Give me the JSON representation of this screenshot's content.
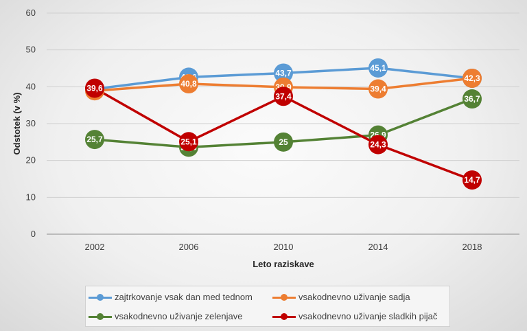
{
  "chart_data": {
    "type": "line",
    "xlabel": "Leto raziskave",
    "ylabel": "Odstotek (v %)",
    "categories": [
      "2002",
      "2006",
      "2010",
      "2014",
      "2018"
    ],
    "ylim": [
      0,
      60
    ],
    "yticks": [
      "0",
      "10",
      "20",
      "30",
      "40",
      "50",
      "60"
    ],
    "grid": true,
    "legend_position": "bottom",
    "series": [
      {
        "name": "zajtrkovanje vsak dan med tednom",
        "color": "#5b9bd5",
        "values": [
          39.4,
          42.6,
          43.7,
          45.1,
          42.3
        ],
        "labels": [
          "39,4",
          "42,6",
          "43,7",
          "45,1",
          "42,3"
        ]
      },
      {
        "name": "vsakodnevno uživanje sadja",
        "color": "#ed7d31",
        "values": [
          38.9,
          40.8,
          39.9,
          39.4,
          42.3
        ],
        "labels": [
          "38,9",
          "40,8",
          "39,9",
          "39,4",
          "42,3"
        ]
      },
      {
        "name": "vsakodnevno uživanje zelenjave",
        "color": "#548235",
        "values": [
          25.7,
          23.6,
          25,
          26.9,
          36.7
        ],
        "labels": [
          "25,7",
          "23,6",
          "25",
          "26,9",
          "36,7"
        ]
      },
      {
        "name": "vsakodnevno uživanje sladkih pijač",
        "color": "#c00000",
        "values": [
          39.6,
          25.1,
          37.4,
          24.3,
          14.7
        ],
        "labels": [
          "39,6",
          "25,1",
          "37,4",
          "24,3",
          "14,7"
        ]
      }
    ]
  }
}
